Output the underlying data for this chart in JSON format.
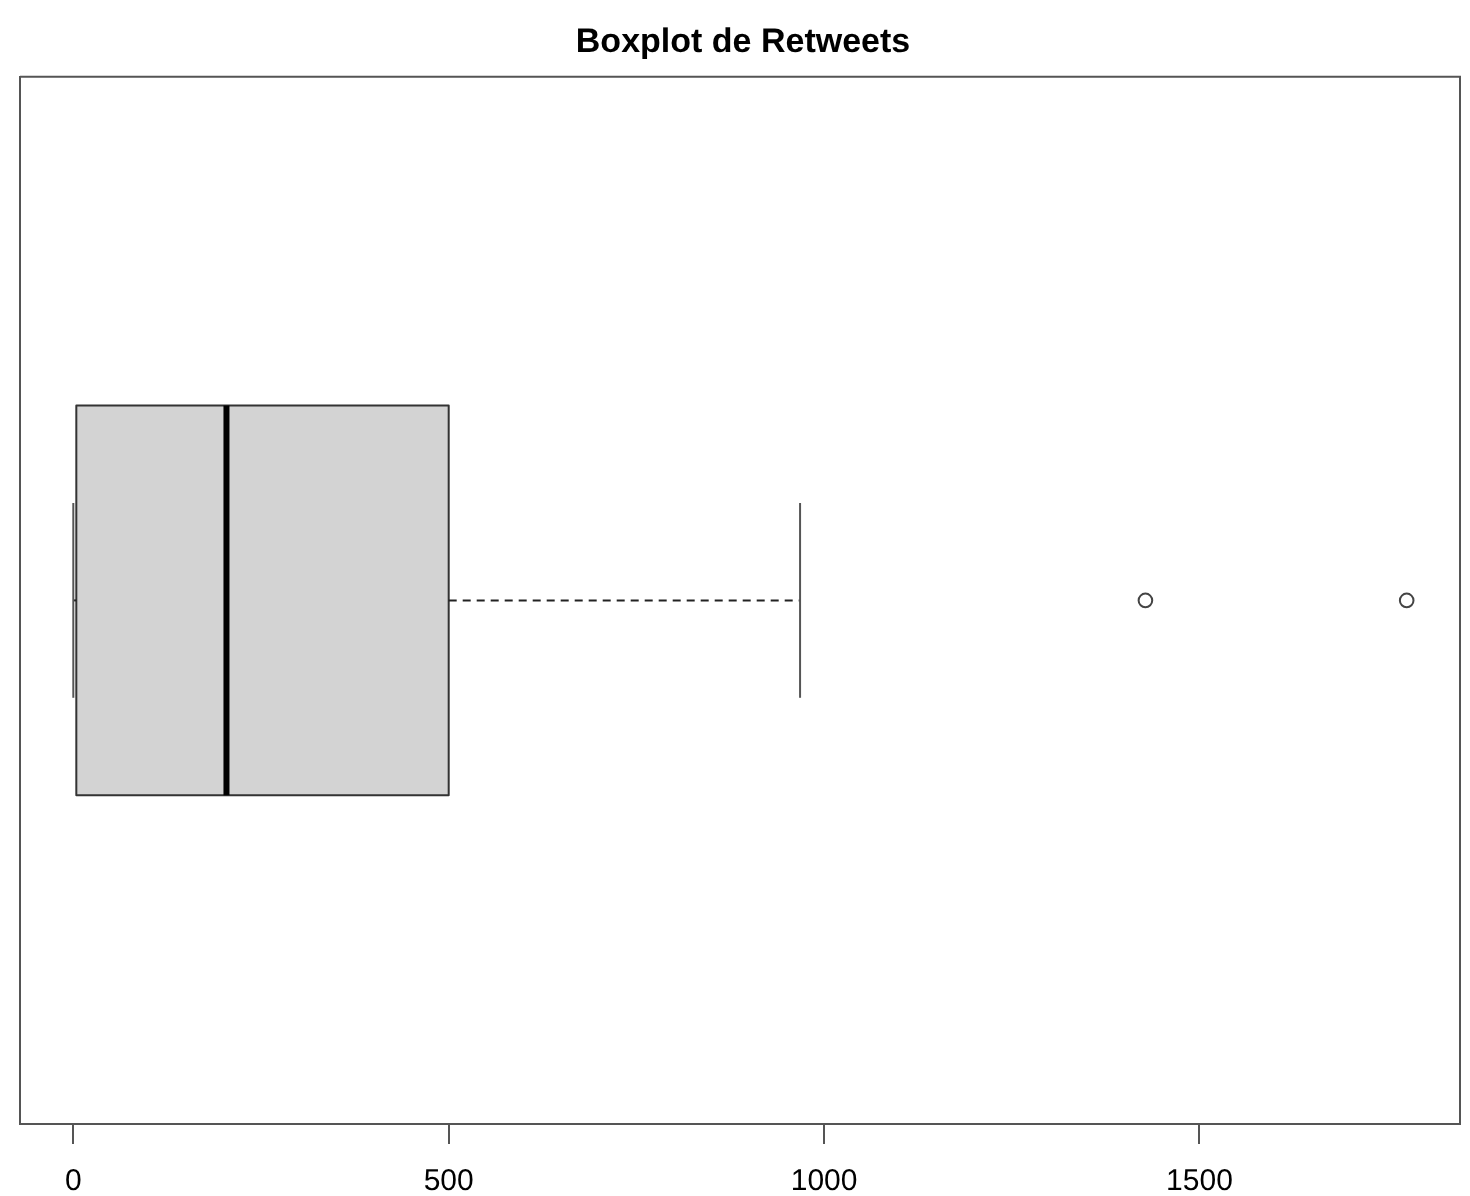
{
  "chart_data": {
    "type": "box",
    "title": "Boxplot de Retweets",
    "orientation": "horizontal",
    "categories": [
      null
    ],
    "boxes": [
      {
        "low": 0,
        "q1": 4,
        "median": 204,
        "q3": 500,
        "high": 968,
        "outliers": [
          1428,
          1776
        ]
      }
    ],
    "color": "#d3d3d3",
    "xlim": [
      -71,
      1847
    ],
    "xticks": [
      0,
      500,
      1000,
      1500
    ],
    "tick_labels": "x"
  }
}
